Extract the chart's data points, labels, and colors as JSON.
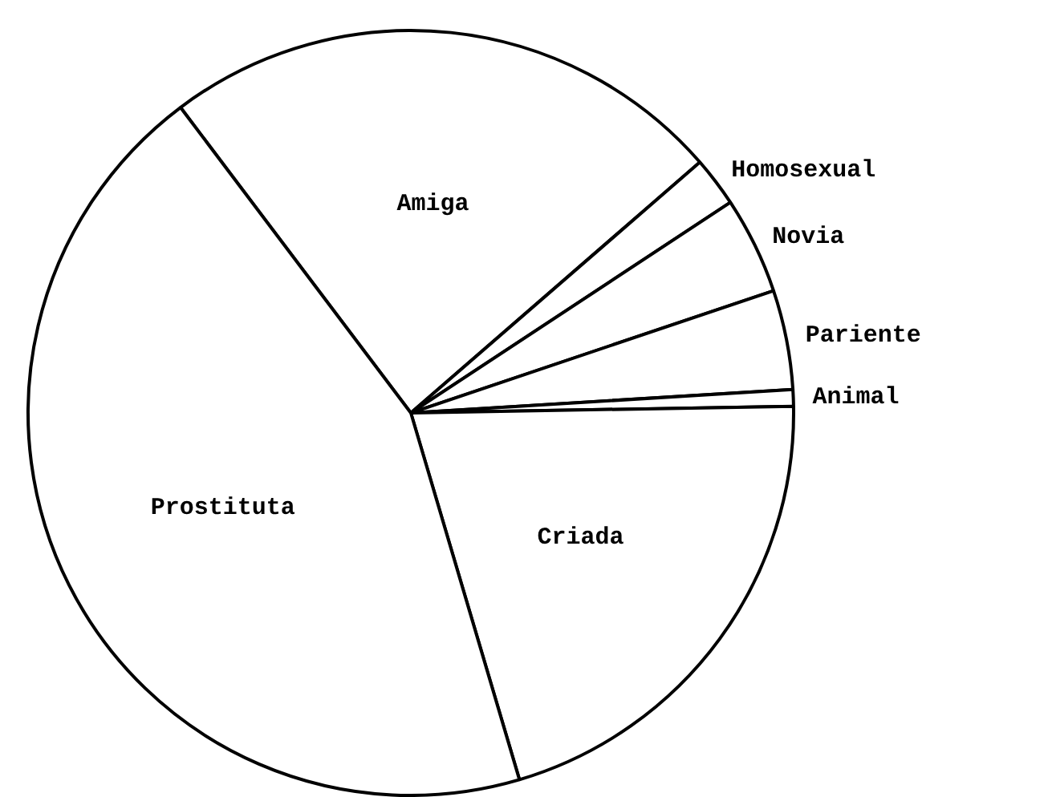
{
  "chart_data": {
    "type": "pie",
    "categories": [
      "Amiga",
      "Homosexual",
      "Novia",
      "Pariente",
      "Animal",
      "Criada",
      "Prostituta"
    ],
    "values": [
      23.9,
      2.1,
      4.1,
      4.2,
      0.7,
      20.7,
      44.3
    ],
    "colors": [
      "#ffffff",
      "#ffffff",
      "#ffffff",
      "#ffffff",
      "#ffffff",
      "#ffffff",
      "#ffffff"
    ],
    "legend": false
  }
}
